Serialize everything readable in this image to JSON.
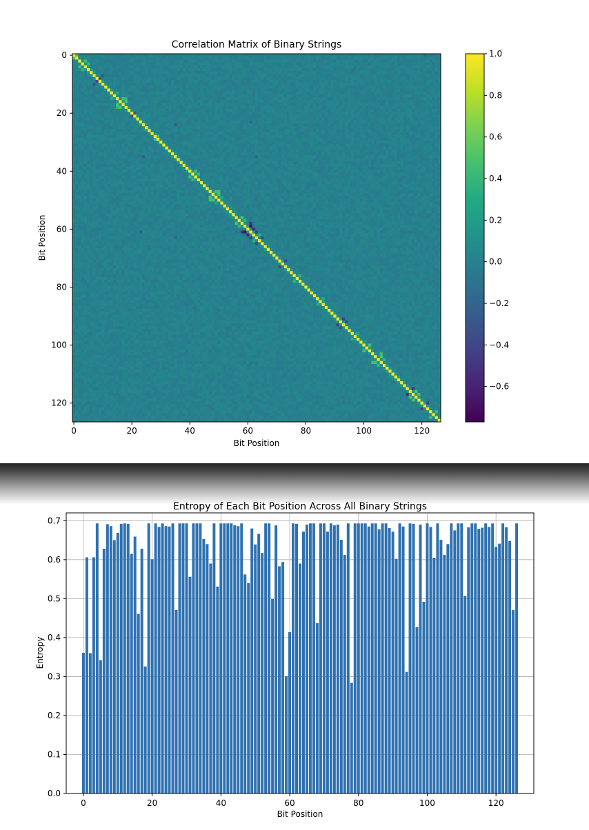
{
  "chart_data": [
    {
      "type": "heatmap",
      "title": "Correlation Matrix of Binary Strings",
      "xlabel": "Bit Position",
      "ylabel": "Bit Position",
      "size": 127,
      "xlim": [
        0,
        126
      ],
      "ylim": [
        126,
        0
      ],
      "x_ticks": [
        "0",
        "20",
        "40",
        "60",
        "80",
        "100",
        "120"
      ],
      "y_ticks": [
        "0",
        "20",
        "40",
        "60",
        "80",
        "100",
        "120"
      ],
      "colormap": "viridis",
      "colorbar": {
        "min": -0.77,
        "max": 1.0,
        "ticks": [
          "1.0",
          "0.8",
          "0.6",
          "0.4",
          "0.2",
          "0.0",
          "−0.2",
          "−0.4",
          "−0.6"
        ]
      },
      "diagonal_value": 1.0,
      "background_value": 0.0,
      "near_diagonal_positive": [
        [
          0,
          1,
          0.5
        ],
        [
          2,
          4,
          0.45
        ],
        [
          3,
          5,
          0.4
        ],
        [
          15,
          17,
          0.5
        ],
        [
          16,
          18,
          0.5
        ],
        [
          15,
          18,
          0.4
        ],
        [
          28,
          29,
          0.45
        ],
        [
          40,
          42,
          0.45
        ],
        [
          41,
          43,
          0.4
        ],
        [
          47,
          49,
          0.5
        ],
        [
          48,
          50,
          0.5
        ],
        [
          47,
          50,
          0.45
        ],
        [
          56,
          58,
          0.5
        ],
        [
          57,
          59,
          0.4
        ],
        [
          62,
          64,
          0.35
        ],
        [
          76,
          78,
          0.35
        ],
        [
          100,
          102,
          0.5
        ],
        [
          104,
          106,
          0.5
        ],
        [
          103,
          106,
          0.45
        ],
        [
          105,
          107,
          0.4
        ],
        [
          116,
          118,
          0.5
        ],
        [
          117,
          119,
          0.5
        ],
        [
          123,
          125,
          0.45
        ],
        [
          49,
          51,
          0.3
        ],
        [
          13,
          15,
          0.3
        ],
        [
          84,
          86,
          0.3
        ],
        [
          96,
          98,
          0.3
        ]
      ],
      "notable_negative": [
        [
          8,
          9,
          -0.35
        ],
        [
          7,
          10,
          -0.3
        ],
        [
          20,
          21,
          -0.3
        ],
        [
          59,
          61,
          -0.7
        ],
        [
          60,
          62,
          -0.6
        ],
        [
          58,
          61,
          -0.5
        ],
        [
          63,
          65,
          -0.4
        ],
        [
          61,
          63,
          -0.45
        ],
        [
          71,
          73,
          -0.4
        ],
        [
          91,
          93,
          -0.45
        ],
        [
          92,
          94,
          -0.35
        ],
        [
          115,
          117,
          -0.5
        ],
        [
          120,
          122,
          -0.4
        ],
        [
          23,
          61,
          -0.25
        ],
        [
          35,
          24,
          -0.25
        ],
        [
          63,
          35,
          -0.2
        ],
        [
          121,
          0,
          -0.2
        ]
      ]
    },
    {
      "type": "bar",
      "title": "Entropy of Each Bit Position Across All Binary Strings",
      "xlabel": "Bit Position",
      "ylabel": "Entropy",
      "xlim": [
        -5,
        131
      ],
      "ylim": [
        0,
        0.72
      ],
      "x_ticks": [
        "0",
        "20",
        "40",
        "60",
        "80",
        "100",
        "120"
      ],
      "y_ticks": [
        "0.0",
        "0.1",
        "0.2",
        "0.3",
        "0.4",
        "0.5",
        "0.6",
        "0.7"
      ],
      "grid": true,
      "bar_color": "#2f71b0",
      "x": [
        0,
        1,
        2,
        3,
        4,
        5,
        6,
        7,
        8,
        9,
        10,
        11,
        12,
        13,
        14,
        15,
        16,
        17,
        18,
        19,
        20,
        21,
        22,
        23,
        24,
        25,
        26,
        27,
        28,
        29,
        30,
        31,
        32,
        33,
        34,
        35,
        36,
        37,
        38,
        39,
        40,
        41,
        42,
        43,
        44,
        45,
        46,
        47,
        48,
        49,
        50,
        51,
        52,
        53,
        54,
        55,
        56,
        57,
        58,
        59,
        60,
        61,
        62,
        63,
        64,
        65,
        66,
        67,
        68,
        69,
        70,
        71,
        72,
        73,
        74,
        75,
        76,
        77,
        78,
        79,
        80,
        81,
        82,
        83,
        84,
        85,
        86,
        87,
        88,
        89,
        90,
        91,
        92,
        93,
        94,
        95,
        96,
        97,
        98,
        99,
        100,
        101,
        102,
        103,
        104,
        105,
        106,
        107,
        108,
        109,
        110,
        111,
        112,
        113,
        114,
        115,
        116,
        117,
        118,
        119,
        120,
        121,
        122,
        123,
        124,
        125,
        126
      ],
      "values": [
        0.361,
        0.606,
        0.36,
        0.606,
        0.693,
        0.342,
        0.628,
        0.691,
        0.686,
        0.65,
        0.669,
        0.692,
        0.693,
        0.692,
        0.615,
        0.659,
        0.461,
        0.628,
        0.326,
        0.693,
        0.601,
        0.693,
        0.684,
        0.693,
        0.686,
        0.685,
        0.693,
        0.471,
        0.693,
        0.693,
        0.693,
        0.556,
        0.693,
        0.693,
        0.693,
        0.653,
        0.64,
        0.59,
        0.693,
        0.531,
        0.693,
        0.693,
        0.693,
        0.693,
        0.688,
        0.686,
        0.693,
        0.562,
        0.54,
        0.68,
        0.639,
        0.666,
        0.617,
        0.693,
        0.693,
        0.499,
        0.688,
        0.583,
        0.594,
        0.301,
        0.414,
        0.693,
        0.692,
        0.59,
        0.672,
        0.69,
        0.693,
        0.693,
        0.437,
        0.693,
        0.693,
        0.672,
        0.693,
        0.688,
        0.69,
        0.651,
        0.612,
        0.693,
        0.284,
        0.693,
        0.693,
        0.693,
        0.693,
        0.685,
        0.693,
        0.693,
        0.678,
        0.693,
        0.693,
        0.681,
        0.672,
        0.602,
        0.693,
        0.685,
        0.312,
        0.693,
        0.692,
        0.427,
        0.69,
        0.492,
        0.693,
        0.684,
        0.605,
        0.693,
        0.651,
        0.612,
        0.64,
        0.693,
        0.675,
        0.693,
        0.693,
        0.507,
        0.683,
        0.693,
        0.693,
        0.679,
        0.682,
        0.693,
        0.684,
        0.693,
        0.633,
        0.641,
        0.693,
        0.683,
        0.648,
        0.471,
        0.693
      ]
    }
  ]
}
